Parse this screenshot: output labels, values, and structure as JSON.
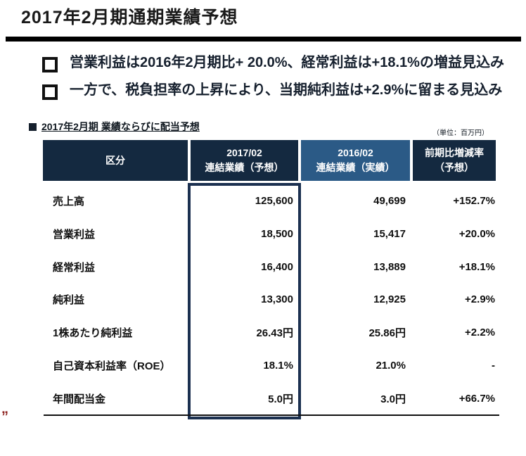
{
  "page": {
    "title": "2017年2月期通期業績予想"
  },
  "bullets": [
    "営業利益は2016年2月期比+ 20.0%、経常利益は+18.1%の増益見込み",
    "一方で、税負担率の上昇により、当期純利益は+2.9%に留まる見込み"
  ],
  "table": {
    "caption": "2017年2月期 業績ならびに配当予想",
    "unit_note": "（単位：百万円）",
    "columns": [
      {
        "line1": "区分",
        "line2": ""
      },
      {
        "line1": "2017/02",
        "line2": "連結業績（予想）"
      },
      {
        "line1": "2016/02",
        "line2": "連結業績（実績）"
      },
      {
        "line1": "前期比増減率",
        "line2": "（予想）"
      }
    ],
    "rows": [
      {
        "label": "売上高",
        "fy2017": "125,600",
        "fy2016": "49,699",
        "change": "+152.7%"
      },
      {
        "label": "営業利益",
        "fy2017": "18,500",
        "fy2016": "15,417",
        "change": "+20.0%"
      },
      {
        "label": "経常利益",
        "fy2017": "16,400",
        "fy2016": "13,889",
        "change": "+18.1%"
      },
      {
        "label": "純利益",
        "fy2017": "13,300",
        "fy2016": "12,925",
        "change": "+2.9%"
      },
      {
        "label": "1株あたり純利益",
        "fy2017": "26.43円",
        "fy2016": "25.86円",
        "change": "+2.2%"
      },
      {
        "label": "自己資本利益率（ROE）",
        "fy2017": "18.1%",
        "fy2016": "21.0%",
        "change": "-"
      },
      {
        "label": "年間配当金",
        "fy2017": "5.0円",
        "fy2016": "3.0円",
        "change": "+66.7%"
      }
    ]
  },
  "colors": {
    "header_dark": "#142940",
    "header_light": "#2b5a86",
    "highlight_border": "#1b3050",
    "title_rule": "#000000",
    "footer_mark": "#8e2320"
  },
  "footer_mark": "„"
}
